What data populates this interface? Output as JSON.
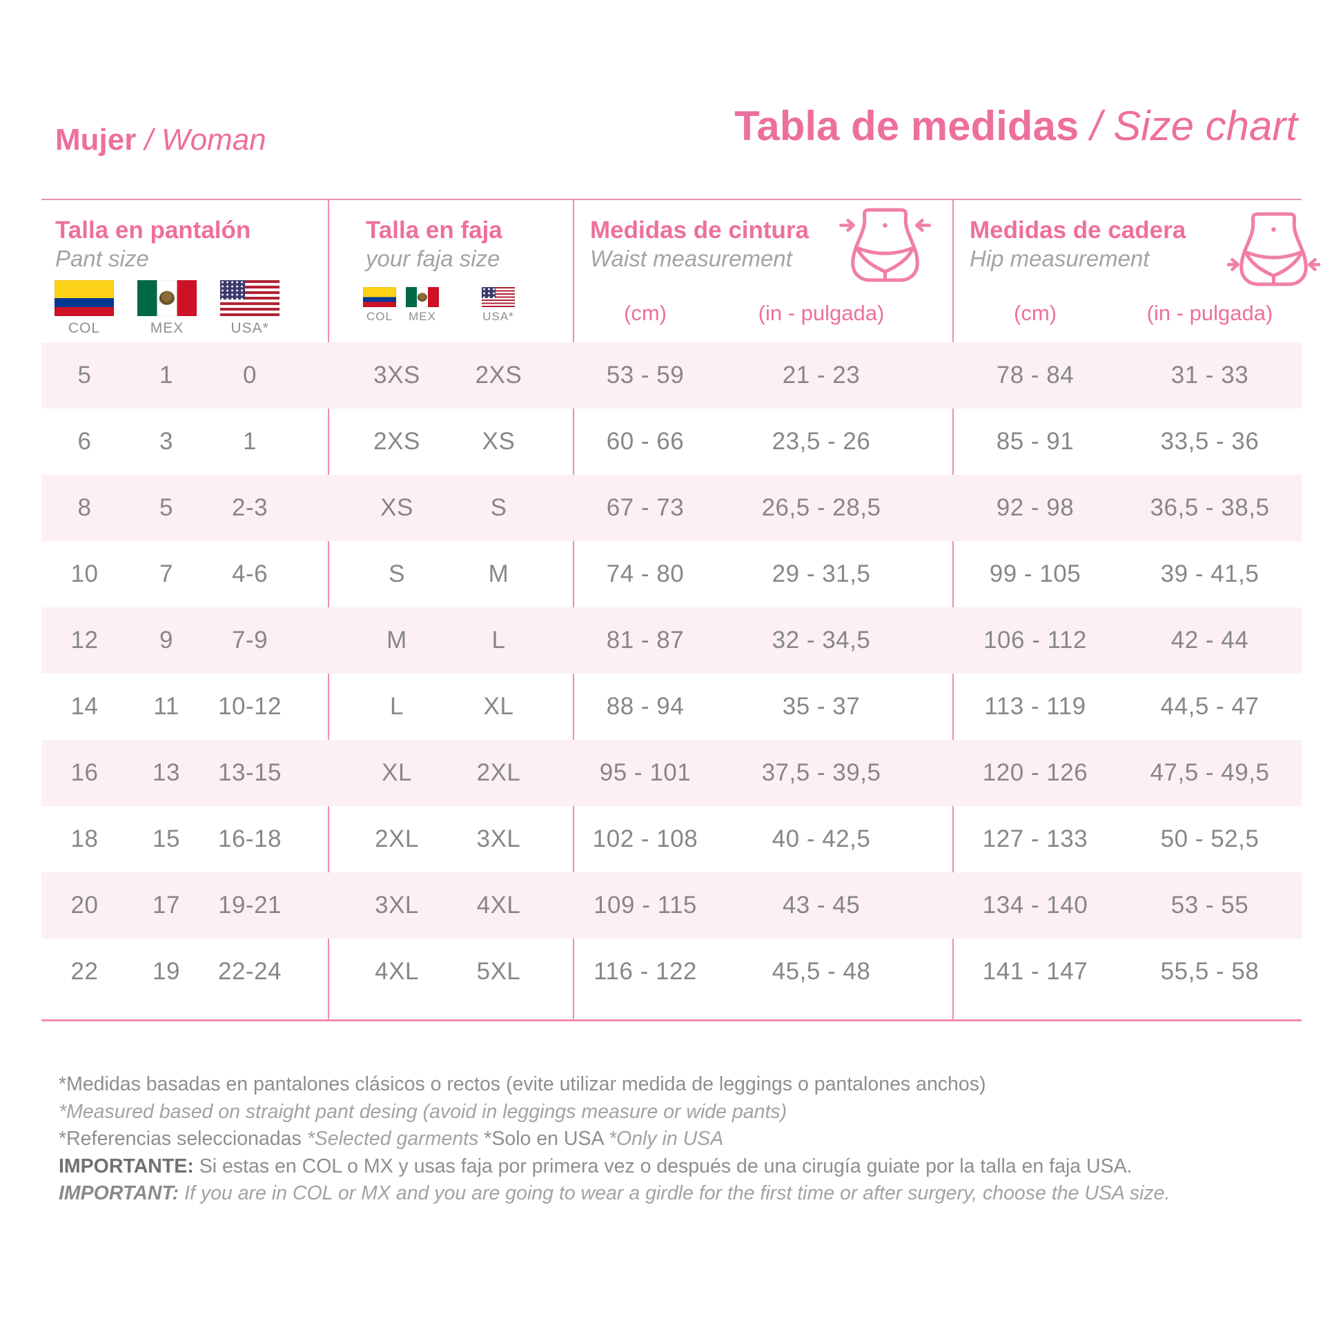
{
  "header": {
    "gender_es": "Mujer",
    "gender_sep": " / ",
    "gender_en": "Woman",
    "title_es": "Tabla de medidas",
    "title_sep": " / ",
    "title_en": "Size chart"
  },
  "sections": {
    "pant": {
      "title_es": "Talla en pantalón",
      "title_en": "Pant size",
      "flags": [
        "COL",
        "MEX",
        "USA*"
      ]
    },
    "faja": {
      "title_es": "Talla en faja",
      "title_en": "your faja size",
      "flags": [
        "COL",
        "MEX",
        "USA*"
      ]
    },
    "waist": {
      "title_es": "Medidas de cintura",
      "title_en": "Waist  measurement",
      "unit_cm": "(cm)",
      "unit_in": "(in - pulgada)"
    },
    "hip": {
      "title_es": "Medidas de cadera",
      "title_en": "Hip  measurement",
      "unit_cm": "(cm)",
      "unit_in": "(in - pulgada)"
    }
  },
  "chart_data": {
    "type": "table",
    "columns": [
      "pant_col",
      "pant_mex",
      "pant_usa",
      "faja_col_mex",
      "faja_usa",
      "waist_cm",
      "waist_in_pulgada",
      "hip_cm",
      "hip_in_pulgada"
    ],
    "rows": [
      [
        "5",
        "1",
        "0",
        "3XS",
        "2XS",
        "53 - 59",
        "21 - 23",
        "78 - 84",
        "31 - 33"
      ],
      [
        "6",
        "3",
        "1",
        "2XS",
        "XS",
        "60 - 66",
        "23,5 - 26",
        "85 - 91",
        "33,5 - 36"
      ],
      [
        "8",
        "5",
        "2-3",
        "XS",
        "S",
        "67 - 73",
        "26,5 - 28,5",
        "92 - 98",
        "36,5 - 38,5"
      ],
      [
        "10",
        "7",
        "4-6",
        "S",
        "M",
        "74 - 80",
        "29 - 31,5",
        "99 - 105",
        "39 - 41,5"
      ],
      [
        "12",
        "9",
        "7-9",
        "M",
        "L",
        "81 - 87",
        "32 - 34,5",
        "106 - 112",
        "42 - 44"
      ],
      [
        "14",
        "11",
        "10-12",
        "L",
        "XL",
        "88 - 94",
        "35 - 37",
        "113 - 119",
        "44,5 - 47"
      ],
      [
        "16",
        "13",
        "13-15",
        "XL",
        "2XL",
        "95 - 101",
        "37,5 - 39,5",
        "120 - 126",
        "47,5 - 49,5"
      ],
      [
        "18",
        "15",
        "16-18",
        "2XL",
        "3XL",
        "102 - 108",
        "40 - 42,5",
        "127 - 133",
        "50 - 52,5"
      ],
      [
        "20",
        "17",
        "19-21",
        "3XL",
        "4XL",
        "109 - 115",
        "43 - 45",
        "134 - 140",
        "53 - 55"
      ],
      [
        "22",
        "19",
        "22-24",
        "4XL",
        "5XL",
        "116 - 122",
        "45,5 - 48",
        "141 - 147",
        "55,5 - 58"
      ]
    ]
  },
  "notes": [
    [
      {
        "text": "*Medidas basadas en pantalones clásicos o rectos (evite utilizar medida de leggings o pantalones anchos)",
        "style": "n"
      }
    ],
    [
      {
        "text": "*Measured based on straight pant desing (avoid in leggings measure or wide pants)",
        "style": "i"
      }
    ],
    [
      {
        "text": "*Referencias seleccionadas ",
        "style": "n"
      },
      {
        "text": "*Selected garments ",
        "style": "i"
      },
      {
        "text": "*Solo en USA ",
        "style": "n"
      },
      {
        "text": "*Only in USA",
        "style": "i"
      }
    ],
    [
      {
        "text": "IMPORTANTE:",
        "style": "b"
      },
      {
        "text": " Si estas en COL o MX y usas faja por primera vez o después de una cirugía guiate por la talla en faja USA.",
        "style": "n"
      }
    ],
    [
      {
        "text": "IMPORTANT:",
        "style": "bi"
      },
      {
        "text": " If you are in COL or MX and you are going to wear a girdle for the first time or after surgery, choose the USA size.",
        "style": "i"
      }
    ]
  ],
  "colors": {
    "accent_pink": "#ED6F9D",
    "line_pink": "#F08CA9",
    "row_alt_bg": "#FCF0F5",
    "cell_text": "#87868B",
    "note_gray": "#8E8E90"
  }
}
